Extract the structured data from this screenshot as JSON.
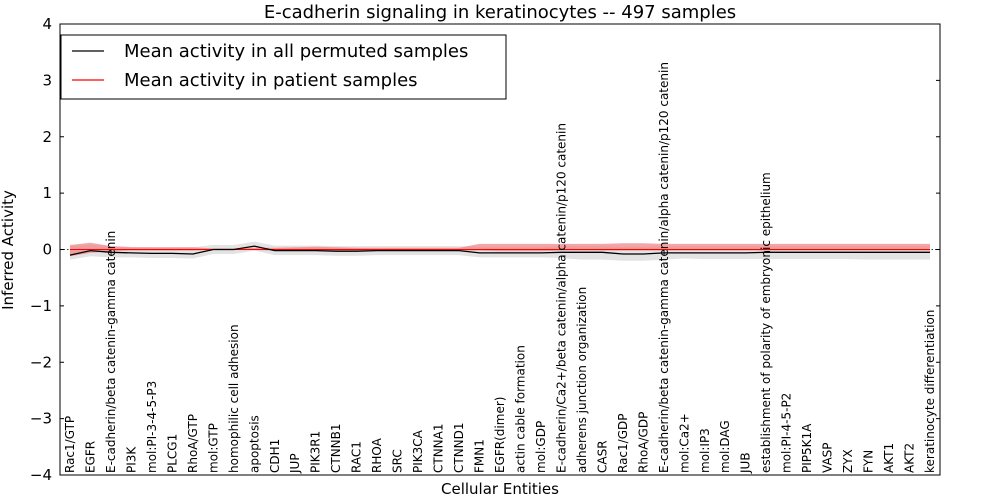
{
  "chart_data": {
    "type": "line",
    "title": "E-cadherin signaling in keratinocytes -- 497 samples",
    "xlabel": "Cellular Entities",
    "ylabel": "Inferred Activity",
    "ylim": [
      -4,
      4
    ],
    "yticks": [
      -4,
      -3,
      -2,
      -1,
      0,
      1,
      2,
      3,
      4
    ],
    "ytick_labels": [
      "−4",
      "−3",
      "−2",
      "−1",
      "0",
      "1",
      "2",
      "3",
      "4"
    ],
    "legend_position": "top-left",
    "categories": [
      "Rac1/GTP",
      "EGFR",
      "E-cadherin/beta catenin-gamma catenin",
      "PI3K",
      "mol:PI-3-4-5-P3",
      "PLCG1",
      "RhoA/GTP",
      "mol:GTP",
      "homophilic cell adhesion",
      "apoptosis",
      "CDH1",
      "JUP",
      "PIK3R1",
      "CTNNB1",
      "RAC1",
      "RHOA",
      "SRC",
      "PIK3CA",
      "CTNNA1",
      "CTNND1",
      "FMN1",
      "EGFR(dimer)",
      "actin cable formation",
      "mol:GDP",
      "E-cadherin/Ca2+/beta catenin/alpha catenin/p120 catenin",
      "adherens junction organization",
      "CASR",
      "Rac1/GDP",
      "RhoA/GDP",
      "E-cadherin/beta catenin-gamma catenin/alpha catenin/p120 catenin",
      "mol:Ca2+",
      "mol:IP3",
      "mol:DAG",
      "JUB",
      "establishment of polarity of embryonic epithelium",
      "mol:PI-4-5-P2",
      "PIP5K1A",
      "VASP",
      "ZYX",
      "FYN",
      "AKT1",
      "AKT2",
      "keratinocyte differentiation"
    ],
    "series": [
      {
        "name": "Mean activity in all permuted samples",
        "color": "#000000",
        "band_color": "#cccccc",
        "values": [
          -0.1,
          -0.02,
          -0.05,
          -0.06,
          -0.07,
          -0.07,
          -0.08,
          0.0,
          0.0,
          0.06,
          -0.02,
          -0.02,
          -0.02,
          -0.03,
          -0.03,
          -0.02,
          -0.02,
          -0.02,
          -0.02,
          -0.02,
          -0.06,
          -0.06,
          -0.06,
          -0.06,
          -0.05,
          -0.05,
          -0.05,
          -0.08,
          -0.08,
          -0.06,
          -0.06,
          -0.06,
          -0.06,
          -0.06,
          -0.05,
          -0.05,
          -0.05,
          -0.05,
          -0.05,
          -0.05,
          -0.05,
          -0.05,
          -0.05
        ],
        "band_low": [
          -0.18,
          -0.12,
          -0.14,
          -0.14,
          -0.15,
          -0.15,
          -0.16,
          -0.08,
          -0.08,
          -0.02,
          -0.1,
          -0.1,
          -0.1,
          -0.11,
          -0.11,
          -0.1,
          -0.1,
          -0.1,
          -0.1,
          -0.1,
          -0.14,
          -0.14,
          -0.14,
          -0.14,
          -0.15,
          -0.18,
          -0.18,
          -0.2,
          -0.2,
          -0.18,
          -0.16,
          -0.17,
          -0.17,
          -0.17,
          -0.17,
          -0.17,
          -0.17,
          -0.17,
          -0.17,
          -0.18,
          -0.18,
          -0.18,
          -0.18
        ],
        "band_high": [
          0.06,
          0.08,
          0.06,
          0.05,
          0.04,
          0.04,
          0.04,
          0.08,
          0.08,
          0.14,
          0.07,
          0.07,
          0.07,
          0.06,
          0.06,
          0.06,
          0.06,
          0.06,
          0.06,
          0.06,
          0.05,
          0.05,
          0.05,
          0.05,
          0.06,
          0.06,
          0.06,
          0.05,
          0.05,
          0.06,
          0.06,
          0.06,
          0.06,
          0.06,
          0.06,
          0.06,
          0.06,
          0.06,
          0.06,
          0.06,
          0.06,
          0.06,
          0.06
        ]
      },
      {
        "name": "Mean activity in patient samples",
        "color": "#ff0000",
        "band_color": "#f08080",
        "values": [
          0.0,
          0.0,
          0.0,
          0.0,
          0.0,
          0.0,
          0.0,
          0.0,
          0.0,
          0.0,
          0.0,
          0.0,
          0.0,
          0.0,
          0.0,
          0.0,
          0.0,
          0.0,
          0.0,
          0.0,
          0.0,
          0.0,
          0.0,
          0.0,
          0.0,
          0.0,
          0.0,
          0.0,
          0.0,
          0.0,
          0.0,
          0.0,
          0.0,
          0.0,
          0.0,
          0.0,
          0.0,
          0.0,
          0.0,
          0.0,
          0.0,
          0.0,
          0.0
        ],
        "band_low": [
          -0.12,
          -0.06,
          -0.03,
          -0.02,
          -0.02,
          -0.02,
          -0.02,
          -0.01,
          -0.01,
          -0.01,
          -0.02,
          -0.02,
          -0.02,
          -0.02,
          -0.02,
          -0.02,
          -0.02,
          -0.02,
          -0.02,
          -0.02,
          -0.02,
          -0.03,
          -0.03,
          -0.03,
          -0.02,
          -0.02,
          -0.02,
          -0.02,
          -0.02,
          -0.02,
          -0.02,
          -0.02,
          -0.02,
          -0.02,
          -0.02,
          -0.02,
          -0.02,
          -0.02,
          -0.02,
          -0.02,
          -0.02,
          -0.02,
          -0.02
        ],
        "band_high": [
          0.08,
          0.12,
          0.06,
          0.04,
          0.04,
          0.04,
          0.04,
          0.02,
          0.02,
          0.03,
          0.03,
          0.04,
          0.05,
          0.04,
          0.03,
          0.03,
          0.03,
          0.03,
          0.03,
          0.03,
          0.1,
          0.1,
          0.1,
          0.1,
          0.1,
          0.1,
          0.1,
          0.11,
          0.11,
          0.1,
          0.1,
          0.1,
          0.1,
          0.1,
          0.1,
          0.1,
          0.1,
          0.1,
          0.1,
          0.1,
          0.1,
          0.1,
          0.1
        ]
      }
    ]
  }
}
